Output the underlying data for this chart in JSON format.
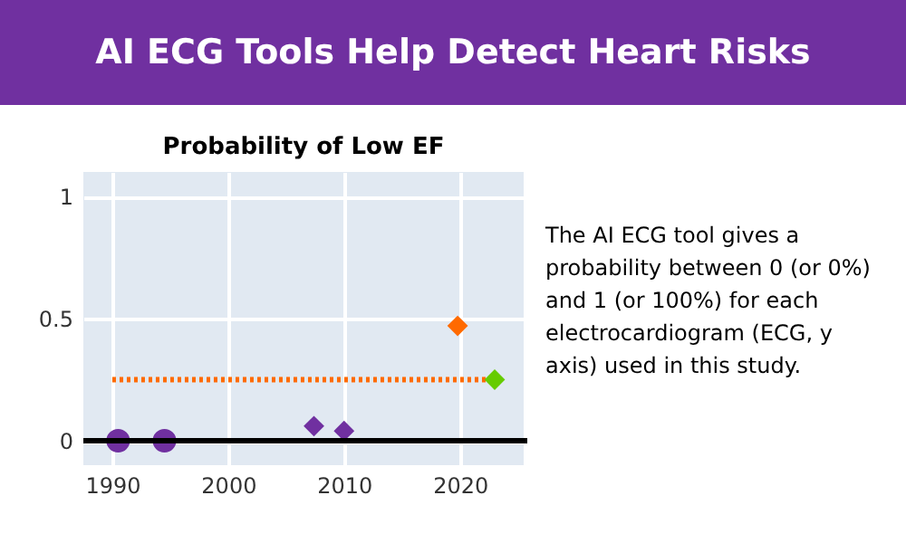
{
  "chart_data": {
    "type": "scatter",
    "title": "AI ECG Tools Help Detect Heart Risks",
    "subtitle": "Probability of Low EF",
    "xlim": [
      1987.5,
      2025.5
    ],
    "xticks": [
      1990,
      2000,
      2010,
      2020
    ],
    "ylim": [
      -0.1,
      1.1
    ],
    "yticks": [
      0,
      0.5,
      1
    ],
    "grid": true,
    "series": [
      {
        "marker": "circle",
        "color": "#7030a0",
        "x": [
          1990.5,
          1994.5
        ],
        "values": [
          0,
          0
        ]
      },
      {
        "marker": "diamond",
        "color": "#7030a0",
        "x": [
          2007.4,
          2010
        ],
        "values": [
          0.06,
          0.04
        ]
      },
      {
        "type": "line",
        "line_style": "dotted",
        "marker": "none",
        "color": "#ff6a00",
        "x": [
          1990,
          2022.8
        ],
        "values": [
          0.25,
          0.25
        ]
      },
      {
        "marker": "diamond",
        "color": "#ff6a00",
        "x": [
          2019.8
        ],
        "values": [
          0.47
        ]
      },
      {
        "marker": "diamond",
        "color": "#66cc00",
        "x": [
          2023
        ],
        "values": [
          0.25
        ]
      }
    ],
    "ref_lines": [
      {
        "axis": "y",
        "value": 0,
        "color": "#000000"
      }
    ],
    "annotations": [
      "The AI ECG tool gives a probability between 0 (or 0%) and 1 (or 100%) for each electrocardiogram (ECG, y axis) used in this study."
    ]
  }
}
